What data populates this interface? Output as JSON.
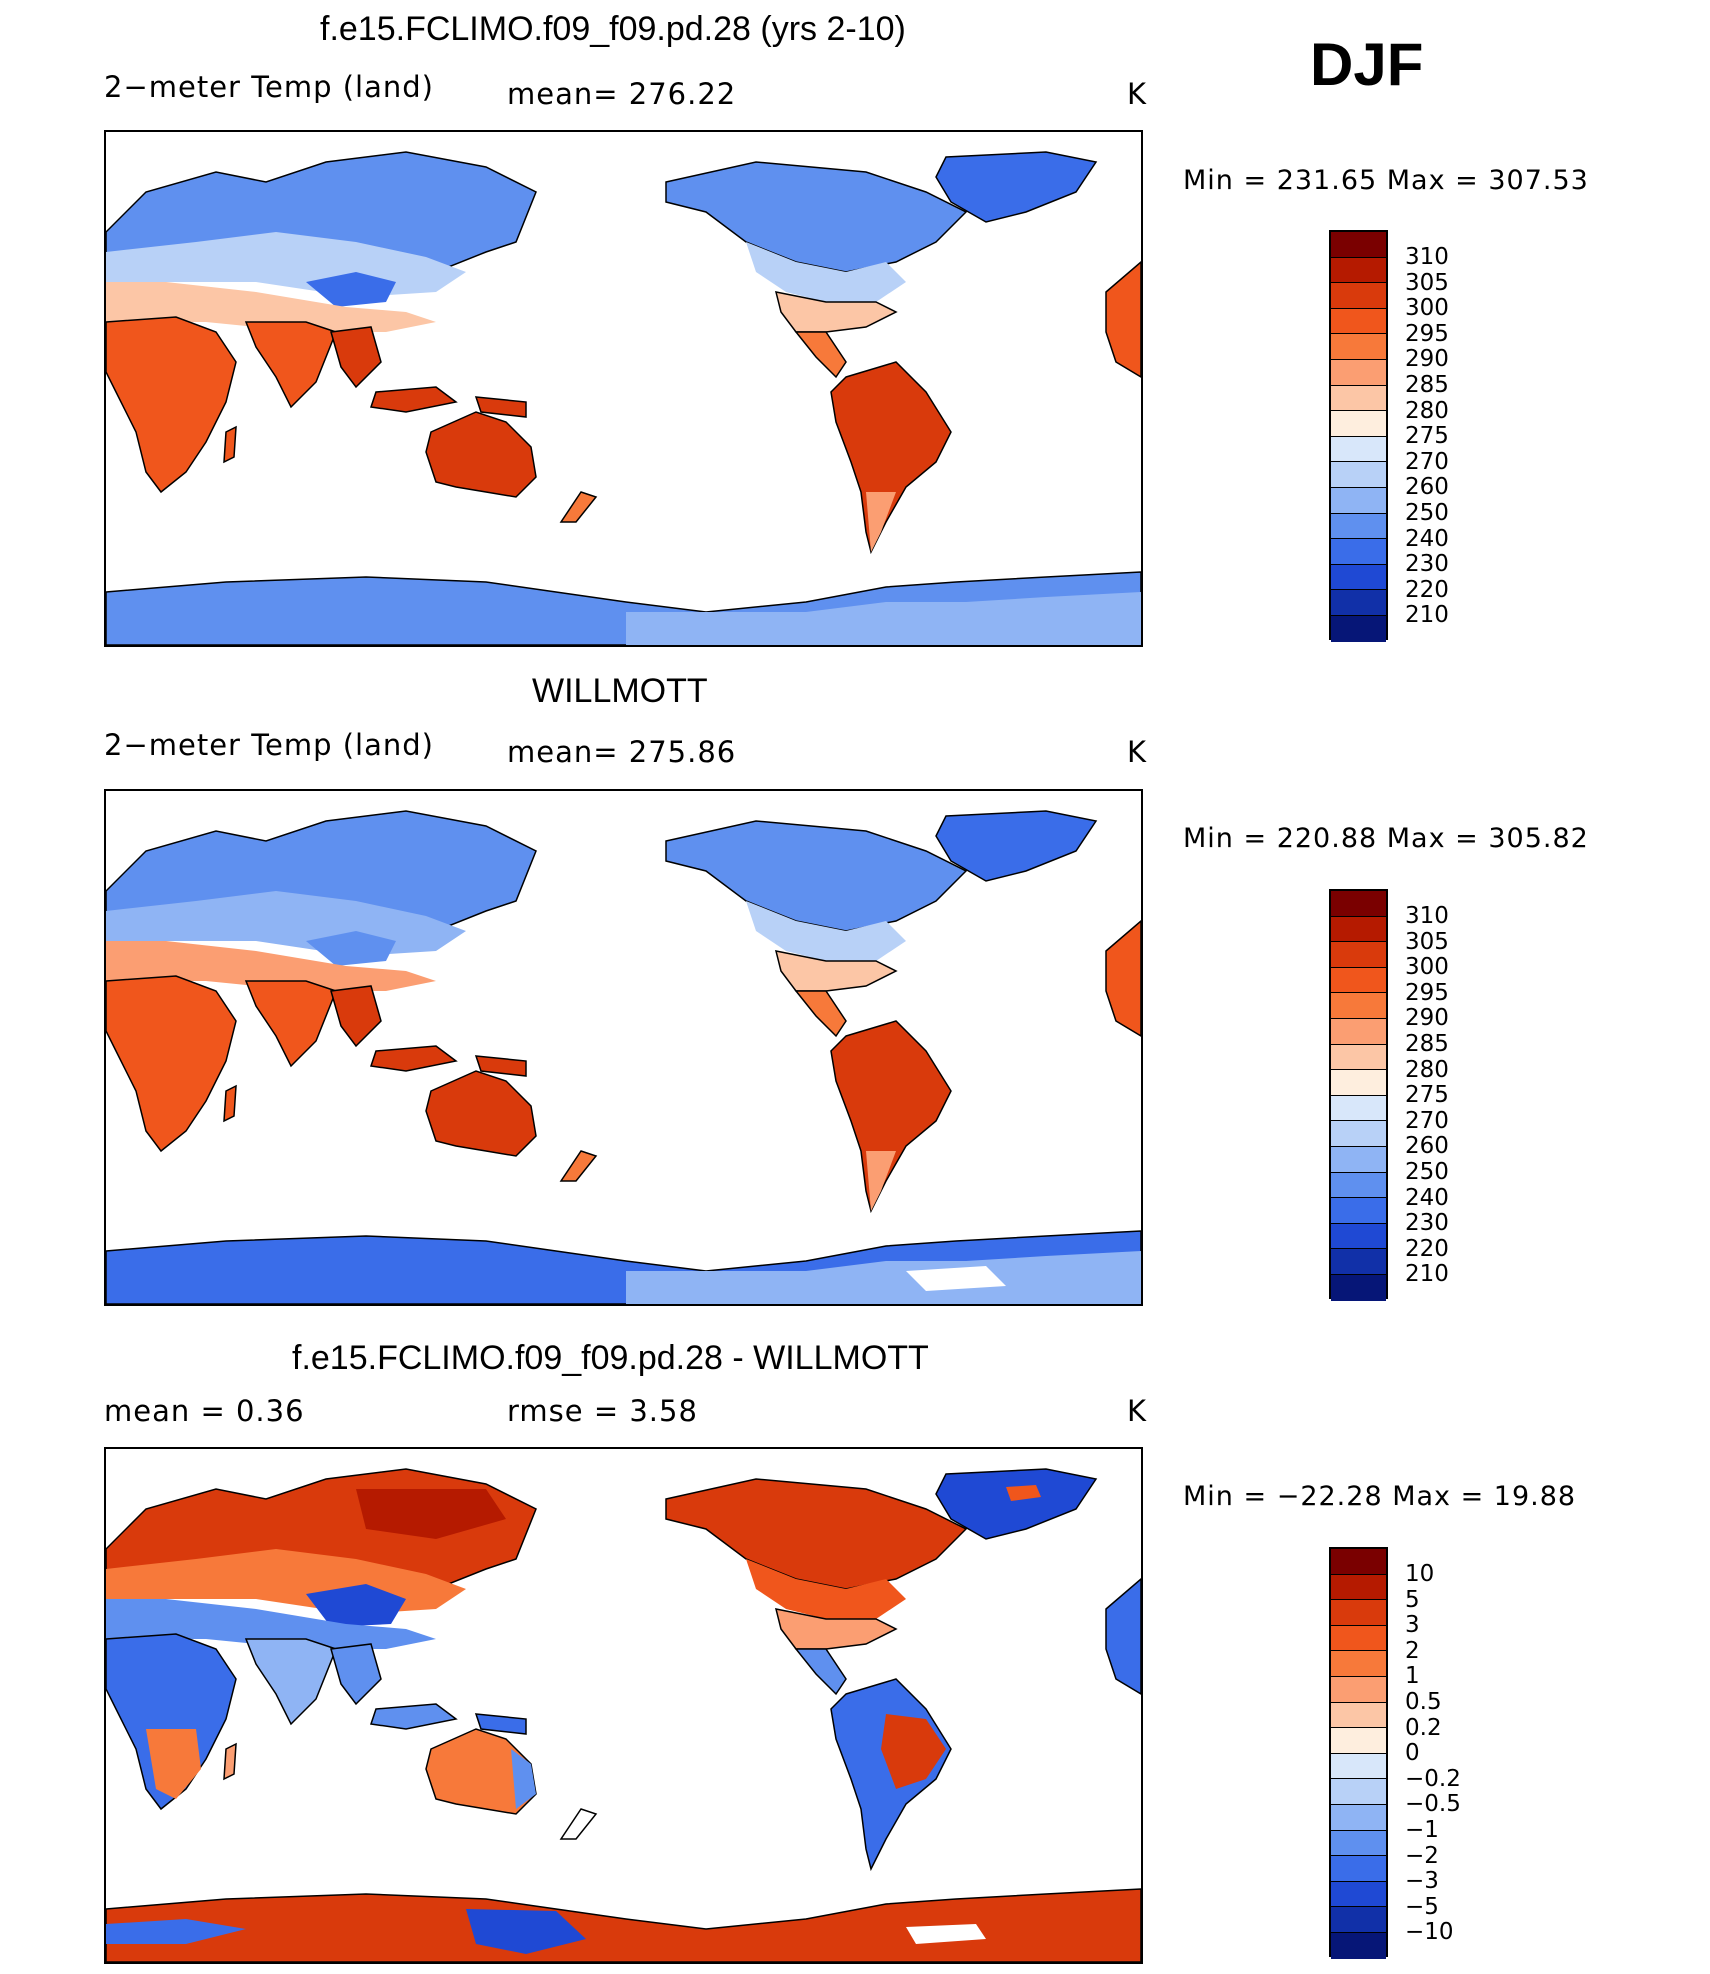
{
  "season": "DJF",
  "panels": [
    {
      "title": "f.e15.FCLIMO.f09_f09.pd.28 (yrs 2-10)",
      "variable": "2−meter Temp (land)",
      "stat": "mean=  276.22",
      "units": "K",
      "minmax": "Min  =  231.65  Max  =  307.53",
      "colorbar": {
        "labels": [
          "310",
          "305",
          "300",
          "295",
          "290",
          "285",
          "280",
          "275",
          "270",
          "260",
          "250",
          "240",
          "230",
          "220",
          "210"
        ],
        "colors": [
          "#7a0000",
          "#b51a00",
          "#d93a0c",
          "#f0561c",
          "#f7793a",
          "#fb9e72",
          "#fcc6a6",
          "#feeede",
          "#d8e7fa",
          "#b8d1f7",
          "#8fb4f4",
          "#5f90ef",
          "#3a6de9",
          "#1f49d4",
          "#1130a8",
          "#061677"
        ]
      }
    },
    {
      "title": "WILLMOTT",
      "variable": "2−meter Temp (land)",
      "stat": "mean=  275.86",
      "units": "K",
      "minmax": "Min  =  220.88  Max  =  305.82",
      "colorbar": {
        "labels": [
          "310",
          "305",
          "300",
          "295",
          "290",
          "285",
          "280",
          "275",
          "270",
          "260",
          "250",
          "240",
          "230",
          "220",
          "210"
        ],
        "colors": [
          "#7a0000",
          "#b51a00",
          "#d93a0c",
          "#f0561c",
          "#f7793a",
          "#fb9e72",
          "#fcc6a6",
          "#feeede",
          "#d8e7fa",
          "#b8d1f7",
          "#8fb4f4",
          "#5f90ef",
          "#3a6de9",
          "#1f49d4",
          "#1130a8",
          "#061677"
        ]
      }
    },
    {
      "title": "f.e15.FCLIMO.f09_f09.pd.28 - WILLMOTT",
      "variable": "mean  =       0.36",
      "stat": "rmse  =       3.58",
      "units": "K",
      "minmax": "Min  =  −22.28  Max  =     19.88",
      "colorbar": {
        "labels": [
          "10",
          "5",
          "3",
          "2",
          "1",
          "0.5",
          "0.2",
          "0",
          "−0.2",
          "−0.5",
          "−1",
          "−2",
          "−3",
          "−5",
          "−10"
        ],
        "colors": [
          "#7a0000",
          "#b51a00",
          "#d93a0c",
          "#f0561c",
          "#f7793a",
          "#fb9e72",
          "#fcc6a6",
          "#feeede",
          "#d8e7fa",
          "#b8d1f7",
          "#8fb4f4",
          "#5f90ef",
          "#3a6de9",
          "#1f49d4",
          "#1130a8",
          "#061677"
        ]
      }
    }
  ]
}
